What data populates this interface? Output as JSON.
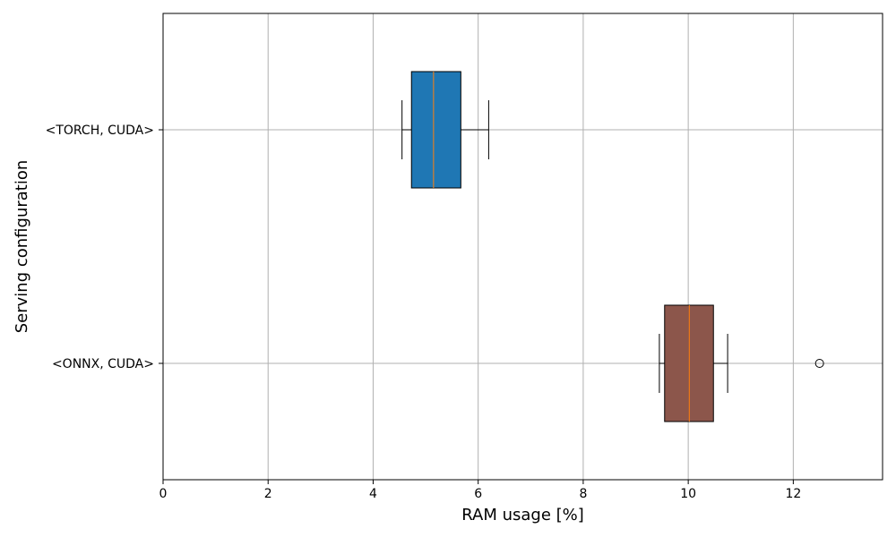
{
  "chart_data": {
    "type": "boxplot",
    "orientation": "horizontal",
    "xlabel": "RAM usage [%]",
    "ylabel": "Serving configuration",
    "xlim": [
      0,
      13.7
    ],
    "xticks": [
      0,
      2,
      4,
      6,
      8,
      10,
      12
    ],
    "grid": true,
    "categories": [
      "<TORCH, CUDA>",
      "<ONNX, CUDA>"
    ],
    "series": [
      {
        "category": "<TORCH, CUDA>",
        "whisker_low": 4.55,
        "q1": 4.73,
        "median": 5.15,
        "q3": 5.67,
        "whisker_high": 6.2,
        "outliers": [],
        "color": "#1f77b4"
      },
      {
        "category": "<ONNX, CUDA>",
        "whisker_low": 9.45,
        "q1": 9.55,
        "median": 10.02,
        "q3": 10.48,
        "whisker_high": 10.75,
        "outliers": [
          12.5
        ],
        "color": "#8c564b"
      }
    ],
    "median_color": "#ff7f0e"
  }
}
